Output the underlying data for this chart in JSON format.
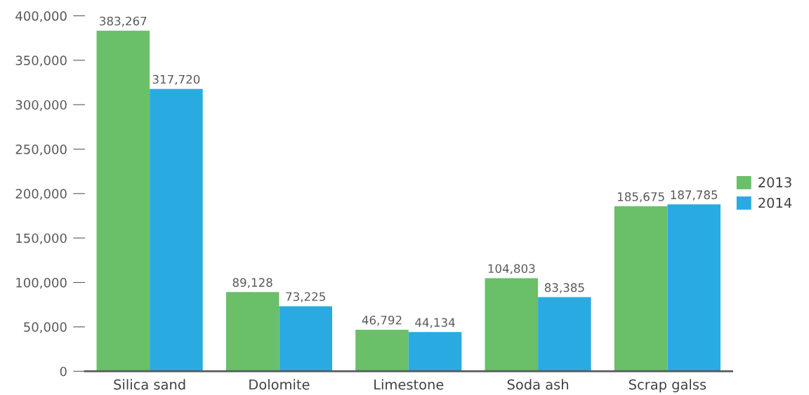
{
  "chart_data": {
    "type": "bar",
    "categories": [
      "Silica sand",
      "Dolomite",
      "Limestone",
      "Soda ash",
      "Scrap galss"
    ],
    "series": [
      {
        "name": "2013",
        "color": "#6abf69",
        "values": [
          383267,
          89128,
          46792,
          104803,
          185675
        ],
        "value_labels": [
          "383,267",
          "89,128",
          "46,792",
          "104,803",
          "185,675"
        ]
      },
      {
        "name": "2014",
        "color": "#29abe2",
        "values": [
          317720,
          73225,
          44134,
          83385,
          187785
        ],
        "value_labels": [
          "317,720",
          "73,225",
          "44,134",
          "83,385",
          "187,785"
        ]
      }
    ],
    "ylim": [
      0,
      400000
    ],
    "yticks": [
      {
        "value": 0,
        "label": "0"
      },
      {
        "value": 50000,
        "label": "50,000"
      },
      {
        "value": 100000,
        "label": "100,000"
      },
      {
        "value": 150000,
        "label": "150,000"
      },
      {
        "value": 200000,
        "label": "200,000"
      },
      {
        "value": 250000,
        "label": "250,000"
      },
      {
        "value": 300000,
        "label": "300,000"
      },
      {
        "value": 350000,
        "label": "350,000"
      },
      {
        "value": 400000,
        "label": "400,000"
      }
    ],
    "grid": false,
    "legend": "right"
  }
}
